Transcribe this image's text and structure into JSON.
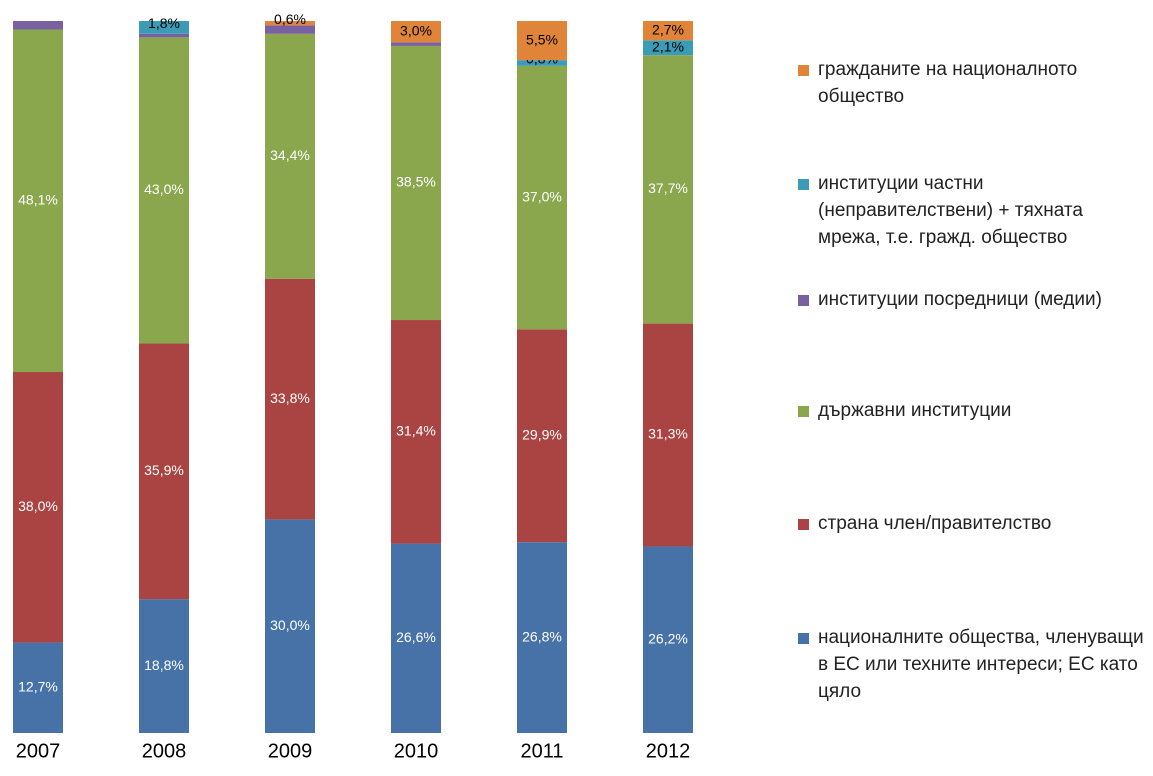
{
  "chart_data": {
    "type": "stacked_bar_100",
    "categories": [
      "2007",
      "2008",
      "2009",
      "2010",
      "2011",
      "2012"
    ],
    "ylim": [
      0,
      100
    ],
    "series": [
      {
        "name": "националните общества, членуващи в ЕС или техните интереси; ЕС като цяло",
        "color": "#4672a8",
        "values": [
          12.7,
          18.8,
          30.0,
          26.6,
          26.8,
          26.2
        ],
        "value_labels": [
          "12,7%",
          "18,8%",
          "30,0%",
          "26,6%",
          "26,8%",
          "26,2%"
        ]
      },
      {
        "name": "страна член/правителство",
        "color": "#a94442",
        "values": [
          38.0,
          35.9,
          33.8,
          31.4,
          29.9,
          31.3
        ],
        "value_labels": [
          "38,0%",
          "35,9%",
          "33,8%",
          "31,4%",
          "29,9%",
          "31,3%"
        ]
      },
      {
        "name": "държавни институции",
        "color": "#8aa74e",
        "values": [
          48.1,
          43.0,
          34.4,
          38.5,
          37.0,
          37.7
        ],
        "value_labels": [
          "48,1%",
          "43,0%",
          "34,4%",
          "38,5%",
          "37,0%",
          "37,7%"
        ]
      },
      {
        "name": "институции посредници (медии)",
        "color": "#7960a0",
        "values": [
          1.2,
          0.5,
          1.2,
          0.5,
          null,
          null
        ],
        "value_labels": [
          null,
          null,
          null,
          null,
          null,
          null
        ]
      },
      {
        "name": "институции частни (неправителствени) + тяхната мрежа, т.е. гражд. общество",
        "color": "#3d9cb5",
        "values": [
          null,
          1.8,
          null,
          null,
          0.8,
          2.1
        ],
        "value_labels": [
          null,
          "1,8%",
          null,
          null,
          "0,8%",
          "2,1%"
        ]
      },
      {
        "name": "гражданите на националното общество",
        "color": "#e0843a",
        "values": [
          null,
          null,
          0.6,
          3.0,
          5.5,
          2.7
        ],
        "value_labels": [
          null,
          null,
          "0,6%",
          "3,0%",
          "5,5%",
          "2,7%"
        ]
      }
    ]
  }
}
